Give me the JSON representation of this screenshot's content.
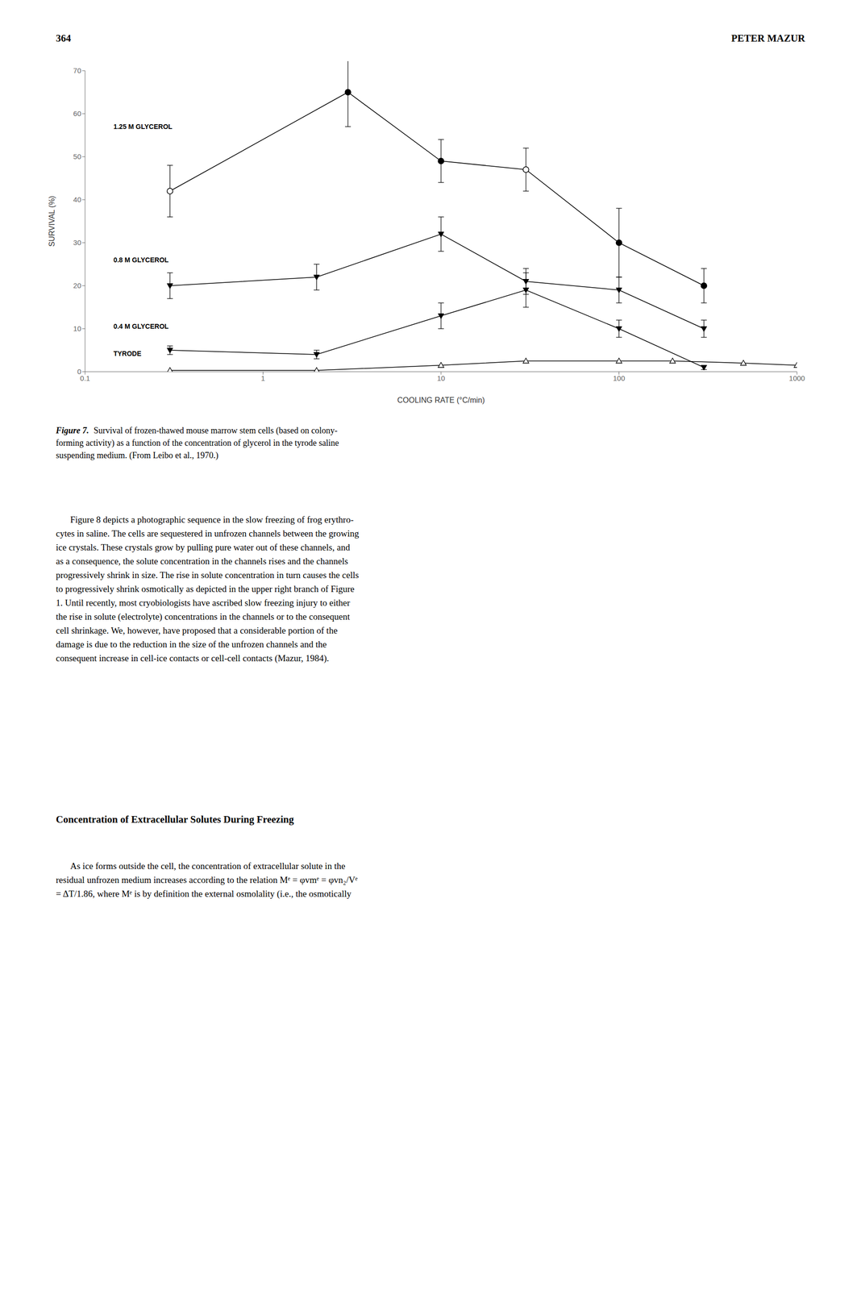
{
  "page": {
    "header_left": "364",
    "header_right": "PETER MAZUR",
    "caption_label": "Figure 7.",
    "caption_lines": [
      "Survival of frozen-thawed mouse marrow stem cells (based on colony-",
      "forming activity) as a function of the concentration of glycerol in the tyrode saline",
      "suspending medium. (From Leibo et al., 1970.)"
    ],
    "body1_lines": [
      "Figure 8 depicts a photographic sequence in the slow freezing of frog erythro-",
      "cytes in saline. The cells are sequestered in unfrozen channels between the growing",
      "ice crystals. These crystals grow by pulling pure water out of these channels, and",
      "as a consequence, the solute concentration in the channels rises and the channels",
      "progressively shrink in size. The rise in solute concentration in turn causes the cells",
      "to progressively shrink osmotically as depicted in the upper right branch of Figure",
      "1. Until recently, most cryobiologists have ascribed slow freezing injury to either",
      "the rise in solute (electrolyte) concentrations in the channels or to the consequent",
      "cell shrinkage. We, however, have proposed that a considerable portion of the",
      "damage is due to the reduction in the size of the unfrozen channels and the",
      "consequent increase in cell-ice contacts or cell-cell contacts (Mazur, 1984)."
    ],
    "heading": "Concentration of Extracellular Solutes During Freezing",
    "body2_lines": [
      "As ice forms outside the cell, the concentration of extracellular solute in the",
      "residual unfrozen medium increases according to the relation Mᵉ = φvmᵉ = φvn₂/Vᵉ",
      "= ΔT/1.86, where Mᵉ is by definition the external osmolality (i.e., the osmotically"
    ]
  },
  "chart_data": {
    "type": "line",
    "xlabel": "COOLING RATE (°C/min)",
    "ylabel": "SURVIVAL (%)",
    "log": "x",
    "xlim": [
      0.1,
      1000
    ],
    "xticks": [
      0.1,
      1,
      10,
      100,
      1000
    ],
    "ylim": [
      0,
      70
    ],
    "yticks": [
      0,
      10,
      20,
      30,
      40,
      50,
      60,
      70
    ],
    "grid": false,
    "series": [
      {
        "name": "TYRODE",
        "color": "#000000",
        "marker": "triangle-up",
        "x": [
          0.3,
          2,
          10,
          30,
          100,
          200,
          500,
          1000
        ],
        "values": [
          0.3,
          0.3,
          1.5,
          2.5,
          2.5,
          2.5,
          2.0,
          1.5
        ],
        "open": [
          true,
          true,
          true,
          true,
          true,
          true,
          true,
          true
        ]
      },
      {
        "name": "0.4 M GLYCEROL",
        "color": "#000000",
        "marker": "triangle-down",
        "x": [
          0.3,
          2,
          10,
          30,
          100,
          300
        ],
        "values": [
          5,
          4,
          13,
          19,
          10,
          1
        ],
        "error_low": [
          1,
          1,
          3,
          4,
          2,
          0.5
        ],
        "error_high": [
          1,
          1,
          3,
          4,
          2,
          0.5
        ],
        "open": [
          false,
          false,
          false,
          false,
          false,
          false
        ]
      },
      {
        "name": "0.8 M GLYCEROL",
        "color": "#000000",
        "marker": "triangle-down",
        "x": [
          0.3,
          2,
          10,
          30,
          100,
          300
        ],
        "values": [
          20,
          22,
          32,
          21,
          19,
          10
        ],
        "error_low": [
          3,
          3,
          4,
          3,
          3,
          2
        ],
        "error_high": [
          3,
          3,
          4,
          3,
          3,
          2
        ],
        "open": [
          false,
          false,
          false,
          false,
          false,
          false
        ]
      },
      {
        "name": "1.25 M GLYCEROL",
        "color": "#000000",
        "marker": "circle",
        "x": [
          0.3,
          3,
          10,
          30,
          100,
          300
        ],
        "values": [
          42,
          65,
          49,
          47,
          30,
          20
        ],
        "error_low": [
          6,
          8,
          5,
          5,
          8,
          4
        ],
        "error_high": [
          6,
          8,
          5,
          5,
          8,
          4
        ],
        "open": [
          true,
          false,
          false,
          true,
          false,
          false
        ]
      }
    ],
    "annotations": [
      {
        "text": "1.25 M GLYCEROL",
        "x": 0.14,
        "y": 57
      },
      {
        "text": "0.8 M GLYCEROL",
        "x": 0.14,
        "y": 26
      },
      {
        "text": "0.4 M GLYCEROL",
        "x": 0.14,
        "y": 10.5
      },
      {
        "text": "TYRODE",
        "x": 0.14,
        "y": 4.2
      }
    ]
  }
}
